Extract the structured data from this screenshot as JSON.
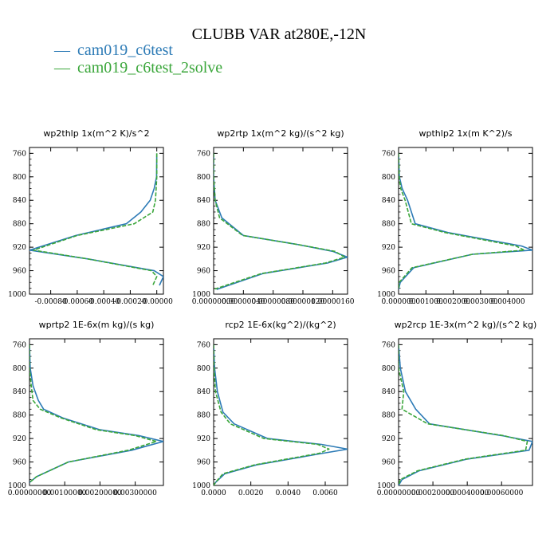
{
  "figure": {
    "title": "CLUBB VAR at280E,-12N",
    "legend": [
      {
        "symbol": "—",
        "label": "cam019_c6test",
        "color": "#2d7bb6"
      },
      {
        "symbol": "—",
        "label": "cam019_c6test_2solve",
        "color": "#3aa63a"
      }
    ]
  },
  "chart_data": [
    {
      "type": "line",
      "title": "wp2thlp   1x(m^2 K)/s^2",
      "ylim": [
        1000,
        750
      ],
      "y_reversed": true,
      "yticks": [
        "760",
        "800",
        "840",
        "880",
        "920",
        "960",
        "1000"
      ],
      "xlim": [
        -0.00096,
        5e-05
      ],
      "xticks": [
        -0.0008,
        -0.0006,
        -0.0004,
        -0.0002,
        0.0
      ],
      "xtick_labels": [
        "-0.00080",
        "-0.00060",
        "-0.00040",
        "-0.00020",
        "-0.00000"
      ],
      "series": [
        {
          "name": "cam019_c6test",
          "color": "#2d7bb6",
          "dashed": false,
          "x": [
            0.0,
            -2e-06,
            -2e-05,
            -5e-05,
            -0.00012,
            -0.00023,
            -0.00061,
            -0.00096,
            -0.00052,
            -2e-05,
            5e-05,
            2e-05
          ],
          "y": [
            760,
            800,
            820,
            840,
            860,
            880,
            900,
            925,
            940,
            960,
            970,
            985
          ]
        },
        {
          "name": "cam019_c6test_2solve",
          "color": "#3aa63a",
          "dashed": true,
          "x": [
            0.0,
            0.0,
            -5e-06,
            -1e-05,
            -3e-05,
            -0.00017,
            -0.0006,
            -0.00093,
            -0.00052,
            -4e-05,
            0.0,
            -3e-05
          ],
          "y": [
            760,
            800,
            820,
            840,
            860,
            880,
            900,
            925,
            940,
            960,
            970,
            985
          ]
        }
      ]
    },
    {
      "type": "line",
      "title": "wp2rtp   1x(m^2 kg)/(s^2 kg)",
      "ylim": [
        1000,
        750
      ],
      "y_reversed": true,
      "yticks": [
        "760",
        "800",
        "840",
        "880",
        "920",
        "960",
        "1000"
      ],
      "xlim": [
        0.0,
        1.8e-06
      ],
      "xticks": [
        0.0,
        4e-07,
        8e-07,
        1.2e-06,
        1.6e-06
      ],
      "xtick_labels": [
        "0.00000000",
        "0.00000040",
        "0.00000080",
        "0.00000120",
        "0.00000160"
      ],
      "series": [
        {
          "name": "cam019_c6test",
          "color": "#2d7bb6",
          "dashed": false,
          "x": [
            0.0,
            0.0,
            2e-08,
            1.1e-07,
            4e-07,
            1.11e-06,
            1.6e-06,
            1.8e-06,
            1.53e-06,
            6.6e-07,
            4e-08
          ],
          "y": [
            760,
            800,
            840,
            870,
            900,
            915,
            927,
            937,
            947,
            965,
            992
          ]
        },
        {
          "name": "cam019_c6test_2solve",
          "color": "#3aa63a",
          "dashed": true,
          "x": [
            0.0,
            0.0,
            2e-08,
            8e-08,
            3.9e-07,
            1.11e-06,
            1.63e-06,
            1.76e-06,
            1.5e-06,
            6.4e-07,
            0.0
          ],
          "y": [
            760,
            800,
            840,
            870,
            900,
            915,
            927,
            937,
            947,
            965,
            992
          ]
        }
      ]
    },
    {
      "type": "line",
      "title": "wpthlp2   1x(m K^2)/s",
      "ylim": [
        1000,
        750
      ],
      "y_reversed": true,
      "yticks": [
        "760",
        "800",
        "840",
        "880",
        "920",
        "960",
        "1000"
      ],
      "xlim": [
        0.0,
        0.0049
      ],
      "xticks": [
        0.0,
        0.001,
        0.002,
        0.003,
        0.004
      ],
      "xtick_labels": [
        "0.000000",
        "0.001000",
        "0.002000",
        "0.003000",
        "0.004000"
      ],
      "series": [
        {
          "name": "cam019_c6test",
          "color": "#2d7bb6",
          "dashed": false,
          "x": [
            0.0,
            3e-05,
            0.00013,
            0.00033,
            0.00061,
            0.0018,
            0.0045,
            0.0049,
            0.0027,
            0.00055,
            6e-05,
            0.0
          ],
          "y": [
            760,
            800,
            820,
            840,
            880,
            895,
            918,
            925,
            932,
            955,
            980,
            992
          ]
        },
        {
          "name": "cam019_c6test_2solve",
          "color": "#3aa63a",
          "dashed": true,
          "x": [
            0.0,
            2e-05,
            8e-05,
            0.00024,
            0.00047,
            0.0017,
            0.0043,
            0.0046,
            0.0027,
            0.00049,
            2e-05,
            0.0
          ],
          "y": [
            760,
            800,
            820,
            840,
            880,
            895,
            918,
            925,
            932,
            955,
            980,
            992
          ]
        }
      ]
    },
    {
      "type": "line",
      "title": "wprtp2   1E-6x(m kg)/(s kg)",
      "ylim": [
        1000,
        750
      ],
      "y_reversed": true,
      "yticks": [
        "760",
        "800",
        "840",
        "880",
        "920",
        "960",
        "1000"
      ],
      "xlim": [
        0.0,
        0.0038
      ],
      "xticks": [
        0.0,
        0.001,
        0.002,
        0.003
      ],
      "xtick_labels": [
        "0.00000000",
        "0.00100000",
        "0.00200000",
        "0.00300000"
      ],
      "series": [
        {
          "name": "cam019_c6test",
          "color": "#2d7bb6",
          "dashed": false,
          "x": [
            0.0,
            2e-05,
            0.0001,
            0.00025,
            0.0004,
            0.00095,
            0.002,
            0.0031,
            0.0038,
            0.0029,
            0.0011,
            0.0002,
            0.0
          ],
          "y": [
            760,
            800,
            830,
            855,
            870,
            885,
            905,
            915,
            925,
            940,
            960,
            985,
            995
          ]
        },
        {
          "name": "cam019_c6test_2solve",
          "color": "#3aa63a",
          "dashed": true,
          "x": [
            0.0,
            0.0,
            5e-05,
            0.0001,
            0.0003,
            0.0009,
            0.0019,
            0.003,
            0.0036,
            0.0028,
            0.0011,
            0.0002,
            0.0
          ],
          "y": [
            760,
            800,
            830,
            855,
            870,
            885,
            905,
            915,
            925,
            940,
            960,
            985,
            995
          ]
        }
      ]
    },
    {
      "type": "line",
      "title": "rcp2   1E-6x(kg^2)/(kg^2)",
      "ylim": [
        1000,
        750
      ],
      "y_reversed": true,
      "yticks": [
        "760",
        "800",
        "840",
        "880",
        "920",
        "960",
        "1000"
      ],
      "xlim": [
        0.0,
        0.0072
      ],
      "xticks": [
        0.0,
        0.002,
        0.004,
        0.006
      ],
      "xtick_labels": [
        "0.0000",
        "0.0020",
        "0.0040",
        "0.0060"
      ],
      "series": [
        {
          "name": "cam019_c6test",
          "color": "#2d7bb6",
          "dashed": false,
          "x": [
            0.0,
            5e-05,
            0.0002,
            0.0005,
            0.0011,
            0.0029,
            0.0058,
            0.0072,
            0.0059,
            0.0023,
            0.0006,
            0.0001,
            0.0
          ],
          "y": [
            760,
            800,
            840,
            875,
            895,
            920,
            930,
            938,
            945,
            965,
            980,
            995,
            1000
          ]
        },
        {
          "name": "cam019_c6test_2solve",
          "color": "#3aa63a",
          "dashed": true,
          "x": [
            0.0,
            2e-05,
            0.0001,
            0.0004,
            0.0009,
            0.0027,
            0.0056,
            0.0062,
            0.0057,
            0.0022,
            0.0005,
            0.0001,
            0.0
          ],
          "y": [
            760,
            800,
            840,
            875,
            895,
            920,
            930,
            938,
            945,
            965,
            980,
            995,
            1000
          ]
        }
      ]
    },
    {
      "type": "line",
      "title": "wp2rcp   1E-3x(m^2 kg)/(s^2 kg)",
      "ylim": [
        1000,
        750
      ],
      "y_reversed": true,
      "yticks": [
        "760",
        "800",
        "840",
        "880",
        "920",
        "960",
        "1000"
      ],
      "xlim": [
        0.0,
        0.00078
      ],
      "xticks": [
        0.0,
        0.0002,
        0.0004,
        0.0006
      ],
      "xtick_labels": [
        "0.00000000",
        "0.00020000",
        "0.00040000",
        "0.00060000"
      ],
      "series": [
        {
          "name": "cam019_c6test",
          "color": "#2d7bb6",
          "dashed": false,
          "x": [
            0.0,
            1e-05,
            4e-05,
            0.0001,
            0.00018,
            0.0006,
            0.00078,
            0.00076,
            0.0004,
            0.00012,
            2e-05,
            0.0
          ],
          "y": [
            760,
            800,
            840,
            870,
            895,
            915,
            925,
            940,
            955,
            975,
            990,
            1000
          ]
        },
        {
          "name": "cam019_c6test_2solve",
          "color": "#3aa63a",
          "dashed": true,
          "x": [
            0.0,
            0.0,
            3e-05,
            2e-05,
            0.00017,
            0.00061,
            0.00075,
            0.00074,
            0.00039,
            0.00011,
            1e-05,
            0.0
          ],
          "y": [
            760,
            800,
            840,
            870,
            895,
            915,
            925,
            940,
            955,
            975,
            990,
            1000
          ]
        }
      ]
    }
  ]
}
